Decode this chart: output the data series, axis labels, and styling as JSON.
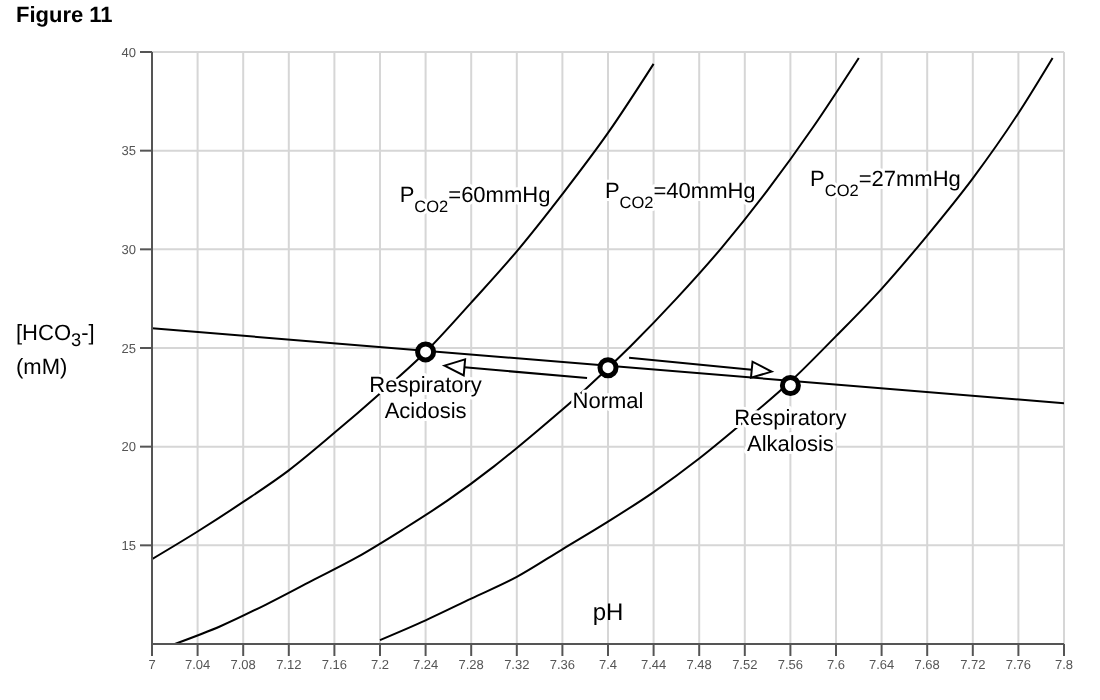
{
  "chart_data": {
    "type": "line",
    "title": "Figure 11",
    "xlabel": "pH",
    "ylabel": "[HCO$_{3}$-]\n(mM)",
    "xlim": [
      7,
      7.8
    ],
    "xticks": [
      7,
      7.04,
      7.08,
      7.12,
      7.16,
      7.2,
      7.24,
      7.28,
      7.32,
      7.36,
      7.4,
      7.44,
      7.48,
      7.52,
      7.56,
      7.6,
      7.64,
      7.68,
      7.72,
      7.76,
      7.8
    ],
    "ylim": [
      10,
      40
    ],
    "yticks": [
      15,
      20,
      25,
      30,
      35,
      40
    ],
    "grid": true,
    "legend": false,
    "marker": "none",
    "line_style": "solid",
    "series": [
      {
        "name": "P$_{CO2}$=60mmHg",
        "color": "#000000",
        "x": [
          7,
          7.04,
          7.08,
          7.12,
          7.16,
          7.2,
          7.24,
          7.28,
          7.32,
          7.36,
          7.4,
          7.44
        ],
        "values": [
          14.3,
          15.7,
          17.2,
          18.8,
          20.7,
          22.7,
          24.8,
          27.3,
          29.9,
          32.8,
          35.9,
          39.4
        ]
      },
      {
        "name": "P$_{CO2}$=40mmHg",
        "color": "#000000",
        "x": [
          7.02,
          7.06,
          7.1,
          7.14,
          7.18,
          7.22,
          7.26,
          7.3,
          7.34,
          7.38,
          7.42,
          7.46,
          7.5,
          7.54,
          7.58,
          7.62
        ],
        "values": [
          10,
          10.9,
          12,
          13.2,
          14.4,
          15.8,
          17.3,
          19,
          20.9,
          22.9,
          25.1,
          27.5,
          30.1,
          33,
          36.2,
          39.7
        ]
      },
      {
        "name": "P$_{CO2}$=27mmHg",
        "color": "#000000",
        "x": [
          7.2,
          7.24,
          7.28,
          7.32,
          7.36,
          7.4,
          7.44,
          7.48,
          7.52,
          7.56,
          7.6,
          7.64,
          7.68,
          7.72,
          7.76,
          7.79
        ],
        "values": [
          10.2,
          11.2,
          12.3,
          13.4,
          14.8,
          16.2,
          17.7,
          19.4,
          21.3,
          23.3,
          25.6,
          28,
          30.7,
          33.6,
          36.9,
          39.7
        ]
      },
      {
        "color": "#000000",
        "x": [
          7,
          7.8
        ],
        "values": [
          26,
          22.2
        ]
      },
      {
        "type": "scatter",
        "marker": "circle",
        "color": "#000000",
        "x": [
          7.24,
          7.4,
          7.56
        ],
        "values": [
          24.8,
          24,
          23.1
        ]
      }
    ],
    "annotations": [
      {
        "text": "Respiratory Acidosis",
        "x": 7.24,
        "y": 24.8
      },
      {
        "text": "Normal",
        "x": 7.4,
        "y": 24
      },
      {
        "text": "Respiratory Alkalosis",
        "x": 7.56,
        "y": 23.1
      }
    ]
  }
}
